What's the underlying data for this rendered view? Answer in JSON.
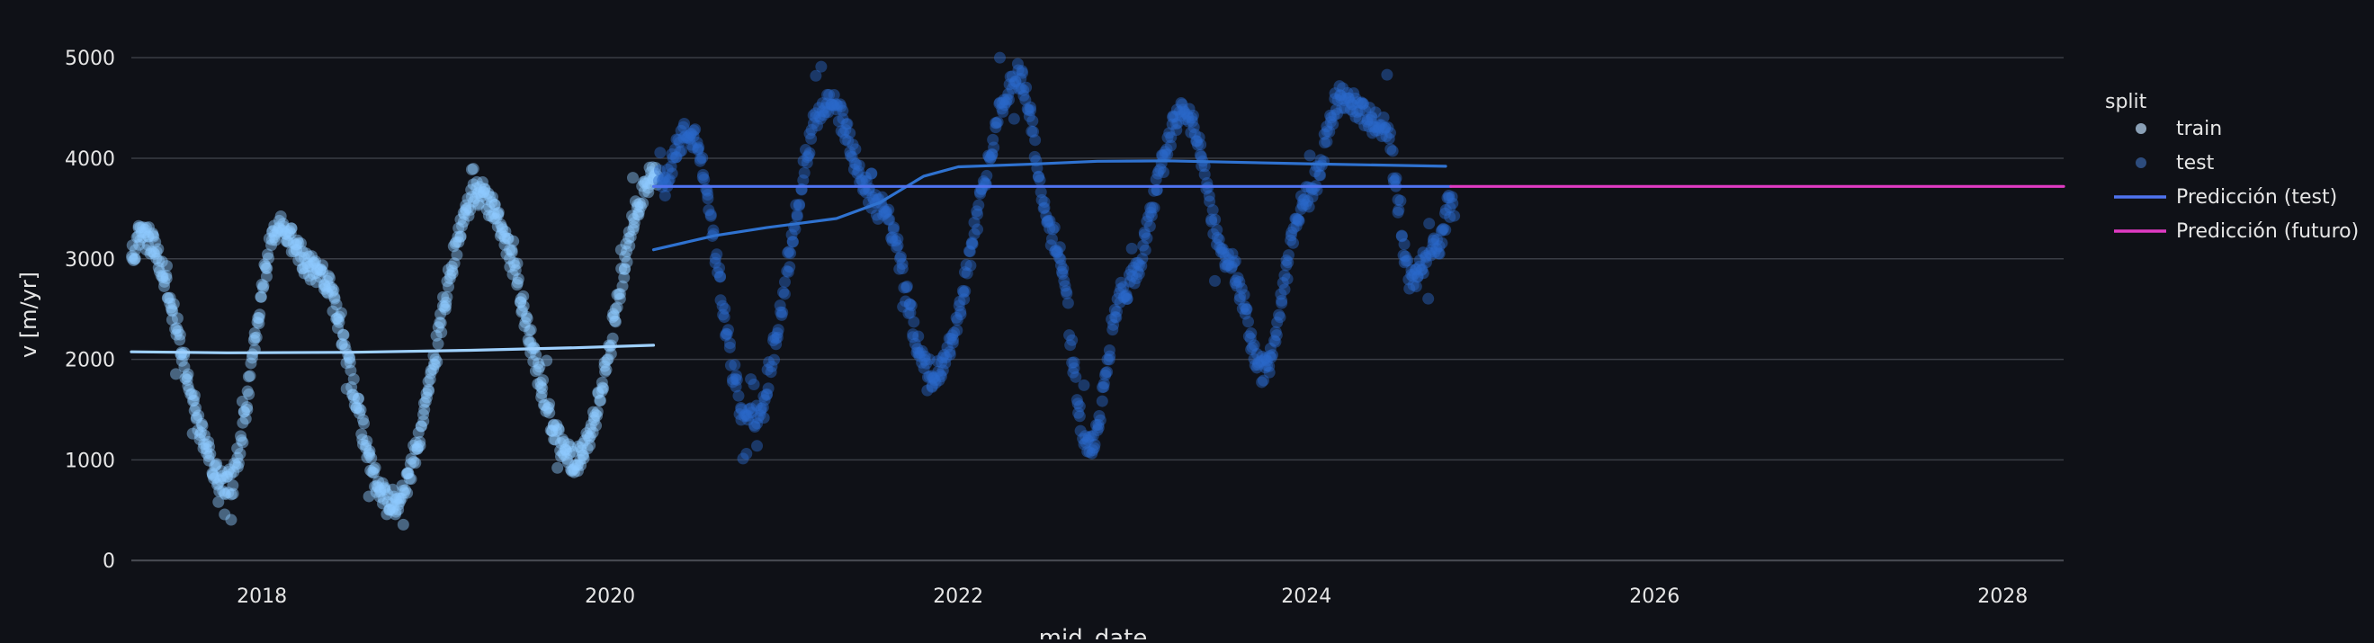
{
  "chart_data": {
    "type": "scatter",
    "title": "",
    "xlabel": "mid_date",
    "ylabel": "v [m/yr]",
    "x_ticks": [
      "2018",
      "2020",
      "2022",
      "2024",
      "2026",
      "2028"
    ],
    "y_ticks": [
      0,
      1000,
      2000,
      3000,
      4000,
      5000
    ],
    "xlim": [
      2017.25,
      2028.35
    ],
    "ylim": [
      -150,
      5350
    ],
    "grid": true,
    "legend": {
      "title": "split",
      "placement": "right",
      "entries": [
        "train",
        "test",
        "Predicción (test)",
        "Predicción (futuro)"
      ]
    },
    "series": [
      {
        "name": "train",
        "kind": "points",
        "color": "#8ec9ff",
        "x_range": [
          2017.25,
          2020.28
        ],
        "points_per_year": 230,
        "cycle_anchors": [
          [
            2017.25,
            3000
          ],
          [
            2017.3,
            3250
          ],
          [
            2017.8,
            780
          ],
          [
            2018.1,
            3300
          ],
          [
            2018.3,
            2900
          ],
          [
            2018.75,
            550
          ],
          [
            2019.25,
            3650
          ],
          [
            2019.8,
            1000
          ],
          [
            2020.25,
            3800
          ]
        ]
      },
      {
        "name": "test",
        "kind": "points",
        "color": "#2a68c9",
        "x_range": [
          2020.28,
          2024.85
        ],
        "points_per_year": 190,
        "cycle_anchors": [
          [
            2020.28,
            3750
          ],
          [
            2020.45,
            4250
          ],
          [
            2020.8,
            1400
          ],
          [
            2021.25,
            4550
          ],
          [
            2021.55,
            3500
          ],
          [
            2021.85,
            1850
          ],
          [
            2022.35,
            4800
          ],
          [
            2022.55,
            3200
          ],
          [
            2022.75,
            1100
          ],
          [
            2022.95,
            2700
          ],
          [
            2023.3,
            4450
          ],
          [
            2023.55,
            3000
          ],
          [
            2023.75,
            1900
          ],
          [
            2024.0,
            3600
          ],
          [
            2024.2,
            4600
          ],
          [
            2024.45,
            4300
          ],
          [
            2024.6,
            2800
          ],
          [
            2024.75,
            3100
          ],
          [
            2024.82,
            3500
          ]
        ]
      },
      {
        "name": "train trend",
        "kind": "line",
        "color": "#9fd1ff",
        "points": [
          [
            2017.25,
            2075
          ],
          [
            2017.8,
            2065
          ],
          [
            2018.5,
            2070
          ],
          [
            2019.2,
            2090
          ],
          [
            2019.8,
            2115
          ],
          [
            2020.25,
            2140
          ]
        ]
      },
      {
        "name": "test trend",
        "kind": "line",
        "color": "#2f72d0",
        "points": [
          [
            2020.25,
            3090
          ],
          [
            2020.6,
            3230
          ],
          [
            2020.9,
            3310
          ],
          [
            2021.3,
            3400
          ],
          [
            2021.55,
            3560
          ],
          [
            2021.8,
            3820
          ],
          [
            2022.0,
            3915
          ],
          [
            2022.4,
            3940
          ],
          [
            2022.8,
            3970
          ],
          [
            2023.2,
            3975
          ],
          [
            2024.0,
            3945
          ],
          [
            2024.8,
            3920
          ]
        ]
      },
      {
        "name": "Predicción (test)",
        "kind": "line",
        "color": "#4f73ef",
        "points": [
          [
            2020.25,
            3720
          ],
          [
            2024.83,
            3720
          ]
        ]
      },
      {
        "name": "Predicción (futuro)",
        "kind": "line",
        "color": "#e03bc3",
        "points": [
          [
            2024.83,
            3720
          ],
          [
            2028.35,
            3720
          ]
        ]
      }
    ],
    "legend_colors": {
      "train": "#8aa0b6",
      "test": "#2d4c7d",
      "Predicción (test)": "#4f73ef",
      "Predicción (futuro)": "#e03bc3"
    },
    "colors": {
      "background": "#0f1117",
      "grid": "#3a3d45",
      "zero_line": "#4a4d55",
      "text": "#e6e6e6"
    }
  }
}
